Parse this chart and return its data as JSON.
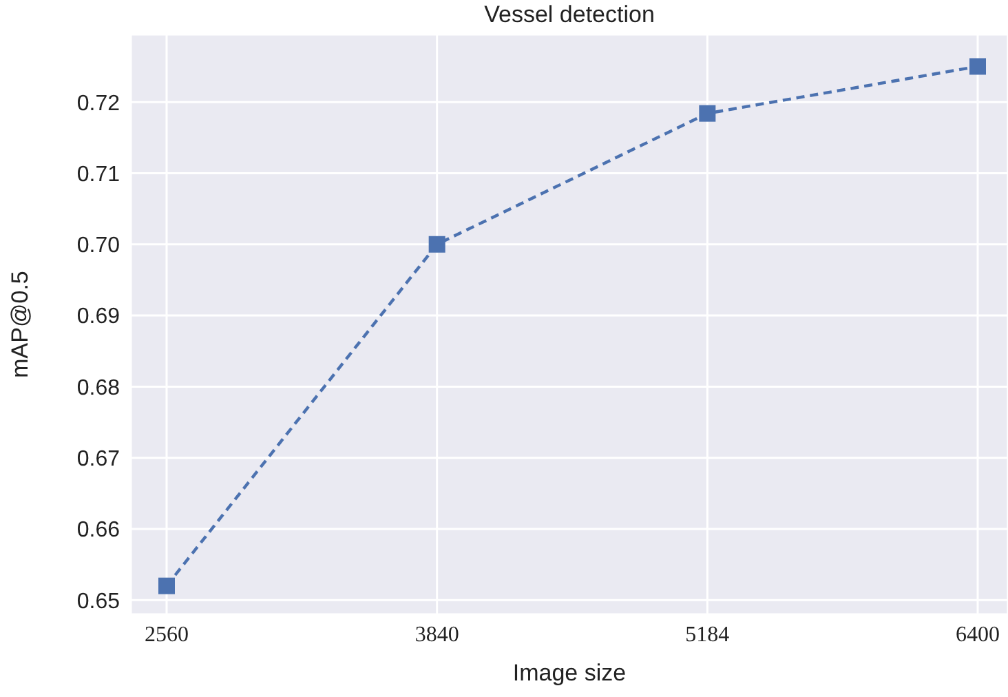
{
  "chart_data": {
    "type": "line",
    "title": "Vessel detection",
    "xlabel": "Image size",
    "ylabel": "mAP@0.5",
    "categories": [
      "2560",
      "3840",
      "5184",
      "6400"
    ],
    "series": [
      {
        "color": "#4c72b0",
        "values": [
          0.652,
          0.7,
          0.7184,
          0.725
        ]
      }
    ],
    "ylim": [
      0.648,
      0.7295
    ],
    "yticks": [
      0.65,
      0.66,
      0.67,
      0.68,
      0.69,
      {
        "value": 0.7,
        "label": "0.70"
      },
      0.71,
      0.72
    ],
    "grid": true,
    "marker": "square",
    "line_style": "dashed"
  }
}
